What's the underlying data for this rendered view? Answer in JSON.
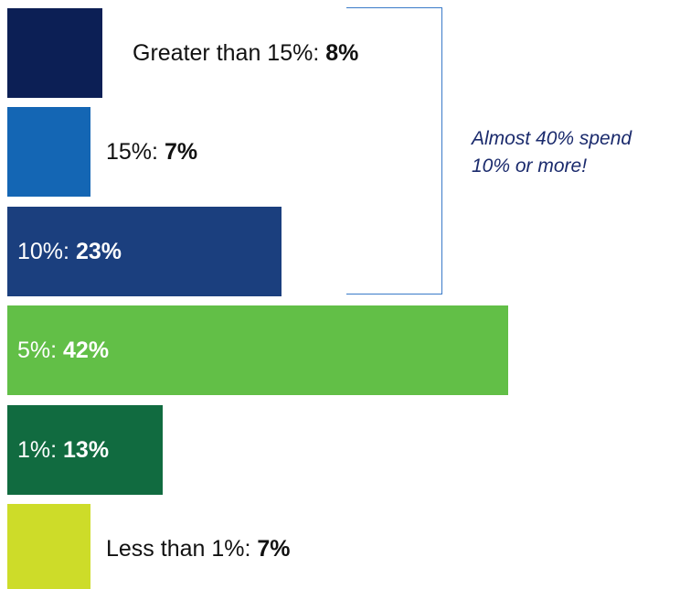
{
  "chart_data": {
    "type": "bar",
    "orientation": "horizontal",
    "categories": [
      "Greater than 15%",
      "15%",
      "10%",
      "5%",
      "1%",
      "Less than 1%"
    ],
    "values": [
      8,
      7,
      23,
      42,
      13,
      7
    ],
    "value_unit": "%",
    "labels": [
      {
        "prefix": "Greater than 15%: ",
        "value": "8%"
      },
      {
        "prefix": "15%: ",
        "value": "7%"
      },
      {
        "prefix": "10%: ",
        "value": "23%"
      },
      {
        "prefix": "5%: ",
        "value": "42%"
      },
      {
        "prefix": "1%: ",
        "value": "13%"
      },
      {
        "prefix": "Less than 1%: ",
        "value": "7%"
      }
    ],
    "colors": [
      "#0c1f55",
      "#1466b4",
      "#1b3f7e",
      "#62bf47",
      "#116b40",
      "#cddc29"
    ],
    "annotation": {
      "line1": "Almost 40% spend",
      "line2": "10% or more!",
      "color": "#1a2a6c",
      "bracket_color": "#3a7bc8"
    }
  }
}
